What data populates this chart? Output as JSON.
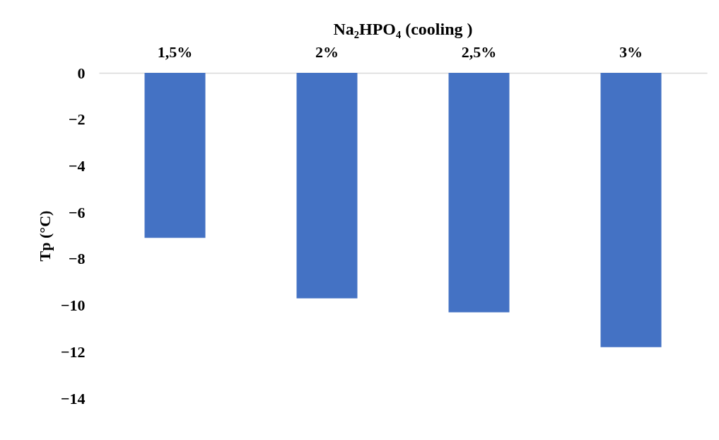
{
  "chart_data": {
    "type": "bar",
    "title": "Na₂HPO₄ (cooling )",
    "ylabel": "Tp (°C)",
    "categories": [
      "1,5%",
      "2%",
      "2,5%",
      "3%"
    ],
    "values": [
      -7.1,
      -9.7,
      -10.3,
      -11.8
    ],
    "color": "#4472c4",
    "ylim": [
      -14,
      0
    ],
    "yticks": [
      0,
      -2,
      -4,
      -6,
      -8,
      -10,
      -12,
      -14
    ],
    "grid": false
  }
}
